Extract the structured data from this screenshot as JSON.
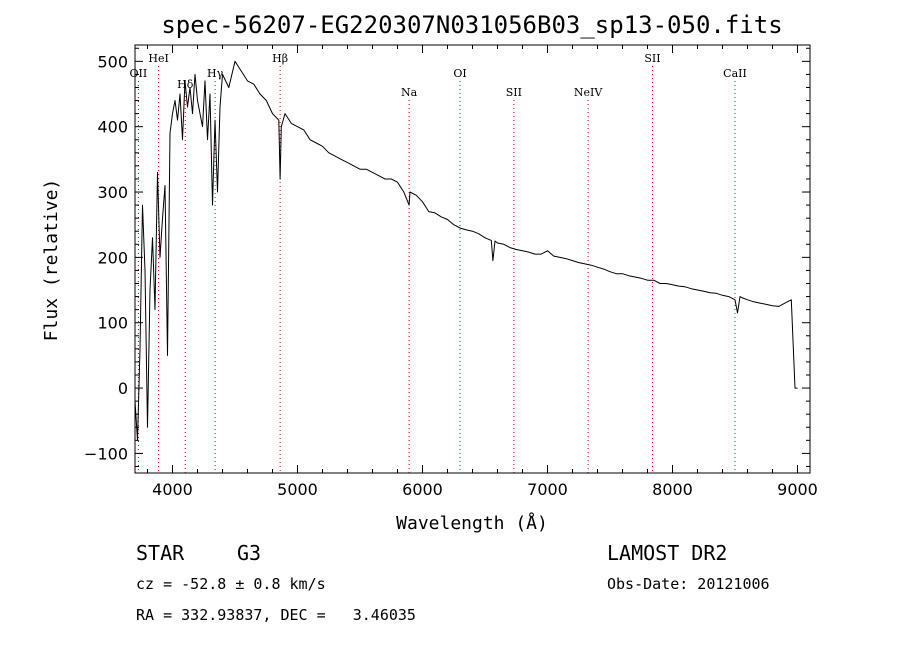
{
  "chart_data": {
    "type": "line",
    "title": "spec-56207-EG220307N031056B03_sp13-050.fits",
    "xlabel": "Wavelength (Å)",
    "ylabel": "Flux (relative)",
    "xlim": [
      3700,
      9100
    ],
    "ylim": [
      -130,
      525
    ],
    "xticks": [
      4000,
      5000,
      6000,
      7000,
      8000,
      9000
    ],
    "yticks": [
      -100,
      0,
      100,
      200,
      300,
      400,
      500
    ],
    "grid": false,
    "lines": [
      {
        "name": "OII",
        "x": 3727,
        "tier": 3
      },
      {
        "name": "HeI",
        "x": 3889,
        "tier": 1
      },
      {
        "name": "Hδ",
        "x": 4102,
        "tier": 4
      },
      {
        "name": "Hγ",
        "x": 4341,
        "tier": 3
      },
      {
        "name": "Hβ",
        "x": 4861,
        "tier": 1
      },
      {
        "name": "Na",
        "x": 5893,
        "tier": 5
      },
      {
        "name": "OI",
        "x": 6300,
        "tier": 3
      },
      {
        "name": "SII",
        "x": 6731,
        "tier": 5
      },
      {
        "name": "NeIV",
        "x": 7325,
        "tier": 5
      },
      {
        "name": "SII",
        "x": 7840,
        "tier": 1
      },
      {
        "name": "CaII",
        "x": 8500,
        "tier": 3
      }
    ],
    "series": [
      {
        "x": [
          3700,
          3720,
          3740,
          3760,
          3780,
          3800,
          3820,
          3840,
          3860,
          3880,
          3900,
          3920,
          3940,
          3960,
          3980,
          4000,
          4020,
          4040,
          4060,
          4080,
          4100,
          4120,
          4140,
          4160,
          4180,
          4200,
          4220,
          4240,
          4260,
          4280,
          4300,
          4320,
          4340,
          4360,
          4380,
          4400,
          4450,
          4500,
          4550,
          4600,
          4650,
          4700,
          4750,
          4800,
          4850,
          4861,
          4870,
          4900,
          4950,
          5000,
          5050,
          5100,
          5150,
          5200,
          5250,
          5300,
          5350,
          5400,
          5450,
          5500,
          5550,
          5600,
          5650,
          5700,
          5750,
          5800,
          5850,
          5893,
          5900,
          5950,
          6000,
          6050,
          6100,
          6150,
          6200,
          6250,
          6300,
          6350,
          6400,
          6450,
          6500,
          6550,
          6563,
          6580,
          6600,
          6650,
          6700,
          6750,
          6800,
          6850,
          6900,
          6950,
          7000,
          7050,
          7100,
          7150,
          7200,
          7250,
          7300,
          7350,
          7400,
          7450,
          7500,
          7550,
          7600,
          7650,
          7700,
          7750,
          7800,
          7850,
          7900,
          7950,
          8000,
          8050,
          8100,
          8150,
          8200,
          8250,
          8300,
          8350,
          8400,
          8450,
          8500,
          8520,
          8540,
          8560,
          8600,
          8650,
          8700,
          8750,
          8800,
          8850,
          8900,
          8950,
          8980,
          9000
        ],
        "y": [
          -20,
          -80,
          60,
          280,
          180,
          -60,
          150,
          230,
          120,
          330,
          200,
          260,
          310,
          50,
          390,
          420,
          440,
          410,
          450,
          380,
          470,
          430,
          460,
          420,
          480,
          440,
          420,
          400,
          470,
          380,
          450,
          280,
          410,
          300,
          430,
          480,
          460,
          500,
          485,
          470,
          465,
          450,
          440,
          420,
          410,
          320,
          400,
          420,
          405,
          400,
          395,
          380,
          375,
          370,
          360,
          355,
          350,
          345,
          340,
          335,
          335,
          330,
          325,
          320,
          320,
          315,
          300,
          280,
          300,
          295,
          285,
          270,
          268,
          262,
          258,
          250,
          245,
          242,
          240,
          236,
          230,
          226,
          195,
          225,
          222,
          220,
          215,
          212,
          210,
          208,
          205,
          205,
          210,
          202,
          200,
          198,
          195,
          192,
          190,
          188,
          185,
          182,
          178,
          175,
          175,
          172,
          170,
          168,
          165,
          165,
          160,
          160,
          158,
          156,
          155,
          152,
          150,
          148,
          146,
          145,
          142,
          140,
          135,
          115,
          140,
          138,
          135,
          132,
          130,
          128,
          126,
          125,
          130,
          135,
          0,
          0
        ]
      }
    ]
  },
  "info": {
    "object_class": "STAR",
    "subclass": "G3",
    "release": "LAMOST DR2",
    "cz": "cz = -52.8 ± 0.8 km/s",
    "obs_date": "Obs-Date: 20121006",
    "coords": "RA = 332.93837, DEC =   3.46035"
  }
}
